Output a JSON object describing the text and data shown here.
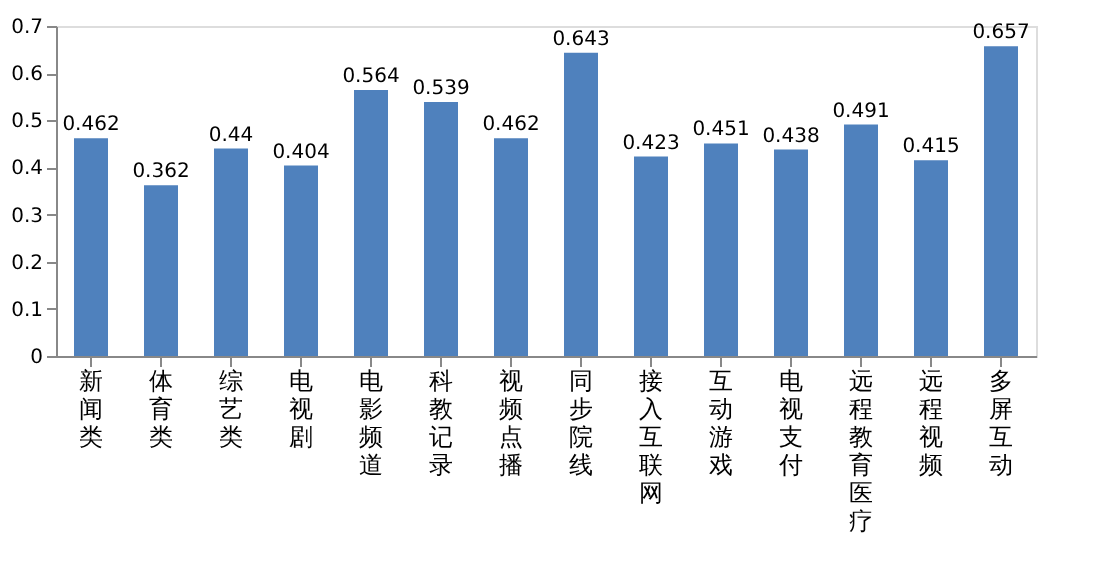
{
  "chart_data": {
    "type": "bar",
    "categories": [
      "新闻类",
      "体育类",
      "综艺类",
      "电视剧",
      "电影频道",
      "科教记录",
      "视频点播",
      "同步院线",
      "接入互联网",
      "互动游戏",
      "电视支付",
      "远程教育医疗",
      "远程视频",
      "多屏互动"
    ],
    "values": [
      0.462,
      0.362,
      0.44,
      0.404,
      0.564,
      0.539,
      0.462,
      0.643,
      0.423,
      0.451,
      0.438,
      0.491,
      0.415,
      0.657
    ],
    "color": "#4f81bd",
    "ylim": [
      0,
      0.7
    ],
    "yticks": [
      0,
      0.1,
      0.2,
      0.3,
      0.4,
      0.5,
      0.6,
      0.7
    ],
    "data_labels": true,
    "grid": false
  }
}
